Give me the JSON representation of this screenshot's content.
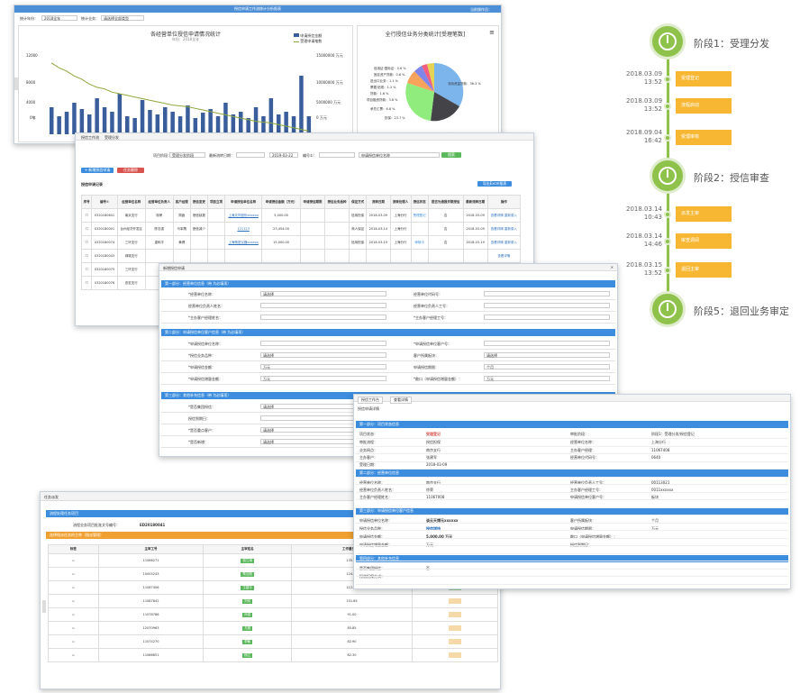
{
  "w1": {
    "title": "授信申请工作流统计分析报表",
    "user": "当前操作员：",
    "f1_label": "统计年份：",
    "f1_val": "2018全年",
    "f2_label": "统计业务：",
    "f2_val": "请选择全部类型",
    "chart_title": "各经营单位授信申请情况统计",
    "chart_sub": "年份：2018全年",
    "legend": [
      "申请授信金额",
      "受理申请笔数"
    ],
    "y_left": [
      "12000",
      "8000",
      "4000",
      "0笔"
    ],
    "y_right": [
      "15000000 万元",
      "10000000 万元",
      "5000000 万元",
      "0 万元"
    ],
    "y_left_title": "受理申请笔数",
    "y_right_title": "授信金额",
    "pie_title": "全行授信业务分类统计[受理笔数]",
    "pie_labels": [
      "信用证·国际证：0.6 %",
      "固定资产贷款：0.6 %",
      "进出口业务：1.1 %",
      "票据·贴现：1.2 %",
      "贷款：1.6 %",
      "项目融资贷款：3.6 %",
      "承兑汇票：6.8 %",
      "担保：23.7 %",
      "流动资金贷款：36.3 %",
      "其他：18.5 %"
    ]
  },
  "w2": {
    "crumb1": "授信工作流",
    "crumb2": "受理分发",
    "lbl_area": "项目阶段：",
    "area": "受理分发阶段",
    "lbl_date": "最新流转日期：",
    "date_to": "2019-03-22",
    "lbl_app": "编号①：",
    "app_ph": "申请授信单位名称",
    "search": "搜索",
    "btn_new": "+ 新增授信申请",
    "btn_del": "任务删除",
    "section": "授信申请记录",
    "export": "导出Excel报表",
    "headers": [
      "序号",
      "编号①",
      "经营单位名称",
      "经营单位负责人",
      "客户经理",
      "授信变更",
      "项目立项",
      "申请授信单位名称",
      "申请授信金额（万元）",
      "申请授信期限",
      "授信业务品种",
      "保证方式",
      "流转日期",
      "流转处理人",
      "授信状态",
      "是否为通报关联授信",
      "最新流转日期",
      "操作"
    ],
    "rows": [
      {
        "no": "0320180641",
        "unit": "南京支行",
        "mgr": "徐荣",
        "cm": "周鑫",
        "chg": "授信续报",
        "proj": "",
        "app": "上海天华股份xxxxxx",
        "amt": "5,000.00",
        "term": "",
        "type": "",
        "guar": "信用担保",
        "date": "2018-03-09",
        "person": "上海分行",
        "status": "受理登记",
        "rel": "否",
        "last": "2018-03-09",
        "op": "查看详情 重新录入"
      },
      {
        "no": "0320180001",
        "unit": "台州经济开发区",
        "mgr": "陈志强",
        "cm": "马军鹰",
        "chg": "授信减少",
        "proj": "",
        "app": "121123",
        "amt": "23,454.00",
        "term": "",
        "type": "",
        "guar": "商人保证",
        "date": "2018-03-14",
        "person": "上海分行",
        "status": "",
        "rel": "否",
        "last": "2018-03-09",
        "op": "查看详情 重新录入"
      },
      {
        "no": "0320180074",
        "unit": "三环支行",
        "mgr": "重和平",
        "cm": "黄健",
        "chg": "",
        "proj": "",
        "app": "上海精密仪器xxxxxx",
        "amt": "15,000.00",
        "term": "",
        "type": "",
        "guar": "信用担保",
        "date": "2018-03-19",
        "person": "上海分行",
        "status": "审核中",
        "rel": "否",
        "last": "2018-03-19",
        "op": "查看详情 重新录入"
      },
      {
        "no": "0320180043",
        "unit": "绿城支行",
        "mgr": "",
        "cm": "",
        "chg": "",
        "proj": "",
        "app": "",
        "amt": "",
        "term": "",
        "type": "",
        "guar": "",
        "date": "",
        "person": "",
        "status": "",
        "rel": "",
        "last": "",
        "op": "查看详情"
      },
      {
        "no": "0320180075",
        "unit": "三环支行",
        "mgr": "",
        "cm": "",
        "chg": "",
        "proj": "",
        "app": "",
        "amt": "",
        "term": "",
        "type": "",
        "guar": "",
        "date": "",
        "person": "",
        "status": "",
        "rel": "",
        "last": "",
        "op": "查看详情"
      },
      {
        "no": "0320180076",
        "unit": "忠宏支行",
        "mgr": "",
        "cm": "",
        "chg": "",
        "proj": "",
        "app": "",
        "amt": "",
        "term": "",
        "type": "",
        "guar": "",
        "date": "",
        "person": "",
        "status": "",
        "rel": "",
        "last": "",
        "op": "查看详情"
      }
    ]
  },
  "w3": {
    "title": "新增授信申请",
    "s1": "第一部分：经营单位信息（带 为必填项）",
    "s2": "第二部分：申请授信单位客户信息（带 为必填项）",
    "s3": "第三部分：其他补充信息（带 为必填项）",
    "f": [
      "*经营单位名称：",
      "经营单位代码号：",
      "经营单位负责人姓名：",
      "经营单位负责人工号：",
      "*主办客户经理姓名：",
      "*主办客户经理工号：",
      "*申请授信单位名称：",
      "*申请授信单位客户号：",
      "*授信业务品种：",
      "客户所属板块：",
      "*申请授信金额：",
      "申请授信期限：",
      "*申请授信增量金额：",
      "*敞口（申请授信增量金额）：",
      "*是否集团授信：",
      "授信到期日：",
      "*是否重点客户：",
      "*是否新增：",
      "授信担保方式："
    ],
    "v": {
      "unit": "请选择",
      "select": "请选择",
      "select2": "请选择",
      "wan": "万元",
      "month": "个月"
    }
  },
  "w4": {
    "title": "任务派发",
    "s1": "流程处理任务项目",
    "lbl_no": "流程业务项目批准文号编号：",
    "no": "ED20180041",
    "s2": "选择指派任务的主审（指派管理）",
    "h": [
      "标签",
      "主审工号",
      "主审姓名",
      "工作量已处理",
      "办结"
    ],
    "rows": [
      [
        "11066271",
        "钱江涛",
        "135.00"
      ],
      [
        "10005243",
        "蔡志刚",
        "124.00"
      ],
      [
        "11067406",
        "王建平",
        "112.00"
      ],
      [
        "11087842",
        "刘伟",
        "101.65"
      ],
      [
        "11078786",
        "孙强",
        "91.00"
      ],
      [
        "12070963",
        "方超",
        "85.85"
      ],
      [
        "11074270",
        "李敏",
        "82.90"
      ],
      [
        "11086651",
        "杨立",
        "82.30"
      ]
    ]
  },
  "w5": {
    "tab1": "授信工作台",
    "tab2": "查看详情",
    "title": "授信申请详情",
    "s1": "第一部分：项目状态信息",
    "s2": "第二部分：经营单位信息",
    "s3": "第三部分：申请授信单位客户信息",
    "s4": "第四部分：其他补充信息",
    "l": [
      "项目状态：",
      "审批流程：",
      "业务网点：",
      "主办客户：",
      "受理日期：",
      "经营单位名称：",
      "经营单位负责人姓名：",
      "主办客户经理姓名：",
      "申请授信单位名称：",
      "授信业务品种：",
      "申请授信金额：",
      "申请授信增量金额：",
      "是否集团授信：",
      "授信担保方式："
    ],
    "r": [
      "审批阶段：",
      "经营单位名称：",
      "主办客户经理：",
      "经营单位代码号：",
      "经营单位负责人工号：",
      "主办客户经理工号：",
      "申请授信单位客户号：",
      "客户所属板块：",
      "申请授信期限：",
      "敞口（申请授信增量金额）：",
      "授信到期日："
    ],
    "v": [
      "受理登记",
      "授信担保",
      "南京支行",
      "张建军",
      "2018-03-09",
      "南京支行",
      "徐荣",
      "11067008",
      "谈云天博元xxxxxx",
      "授信增持",
      "5,000.00 万元",
      "万元",
      "否"
    ],
    "rv": [
      "阶段1：受理分发/授信登记",
      "上海分行",
      "11067408",
      "0640",
      "00113021",
      "0011xxxxxx",
      "板块",
      "个月",
      "万元"
    ]
  },
  "timeline": {
    "stages": [
      "阶段1：受理分发",
      "阶段2：授信审查",
      "阶段5：退回业务审定"
    ],
    "events": [
      {
        "date": "2018.03.09",
        "time": "13:52",
        "label": "受理登记"
      },
      {
        "date": "2018.03.09",
        "time": "13:52",
        "label": "流程启动"
      },
      {
        "date": "2018.09.04",
        "time": "16:42",
        "label": "受理审核"
      },
      {
        "date": "2018.03.14",
        "time": "10:43",
        "label": "派发主审"
      },
      {
        "date": "2018.03.14",
        "time": "14:46",
        "label": "审查调阅"
      },
      {
        "date": "2018.03.15",
        "time": "13:52",
        "label": "退回主审"
      }
    ]
  }
}
